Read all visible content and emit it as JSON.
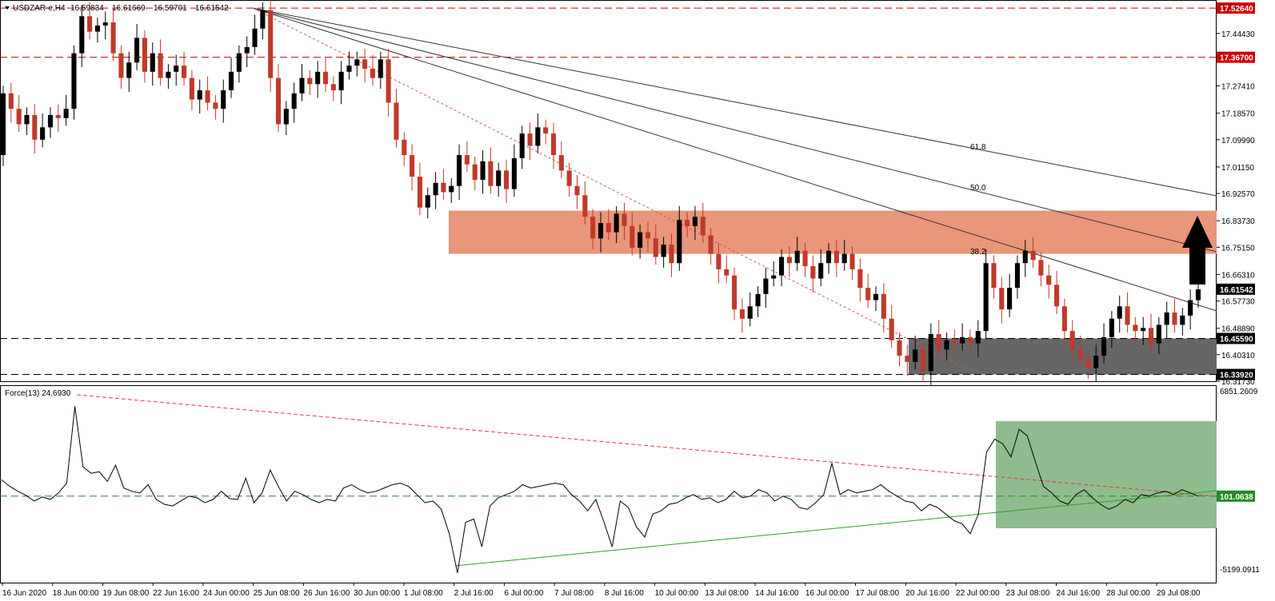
{
  "chart_data": [
    {
      "type": "candlestick",
      "symbol_label": "USDZAR-e,H4",
      "ohlc_header": [
        "16.59834",
        "16.61669",
        "16.59701",
        "16.61542"
      ],
      "ylim": [
        16.3173,
        17.55
      ],
      "y_ticks": [
        "17.44430",
        "17.27410",
        "17.18570",
        "17.09990",
        "17.01150",
        "16.92570",
        "16.83730",
        "16.75150",
        "16.66310",
        "16.57730",
        "16.48890",
        "16.40310",
        "16.31730"
      ],
      "x_labels": [
        "16 Jun 2020",
        "18 Jun 00:00",
        "19 Jun 08:00",
        "22 Jun 16:00",
        "24 Jun 00:00",
        "25 Jun 08:00",
        "26 Jun 16:00",
        "30 Jun 00:00",
        "1 Jul 08:00",
        "2 Jul 16:00",
        "6 Jul 00:00",
        "7 Jul 08:00",
        "8 Jul 16:00",
        "10 Jul 00:00",
        "13 Jul 08:00",
        "14 Jul 16:00",
        "16 Jul 00:00",
        "17 Jul 08:00",
        "20 Jul 16:00",
        "22 Jul 00:00",
        "23 Jul 08:00",
        "24 Jul 16:00",
        "28 Jul 00:00",
        "29 Jul 08:00"
      ],
      "levels": [
        {
          "value": 17.5264,
          "label": "17.52640",
          "color": "#cc0000"
        },
        {
          "value": 17.367,
          "label": "17.36700",
          "color": "#cc0000"
        },
        {
          "value": 16.4559,
          "label": "16.45590",
          "color": "#000000"
        },
        {
          "value": 16.3392,
          "label": "16.33920",
          "color": "#000000"
        }
      ],
      "current_price": {
        "value": 16.61542,
        "label": "16.61542"
      },
      "resistance_zone": {
        "from": 16.73,
        "to": 16.87,
        "color": "#e9967a"
      },
      "support_zone": {
        "from": 16.3392,
        "to": 16.4559,
        "color": "#666666"
      },
      "fib_fan_labels": [
        "38.2",
        "50.0",
        "61.8"
      ],
      "series": [
        {
          "o": 17.05,
          "c": 17.25
        },
        {
          "o": 17.25,
          "c": 17.2
        },
        {
          "o": 17.2,
          "c": 17.15
        },
        {
          "o": 17.15,
          "c": 17.18
        },
        {
          "o": 17.18,
          "c": 17.1
        },
        {
          "o": 17.1,
          "c": 17.14
        },
        {
          "o": 17.14,
          "c": 17.18
        },
        {
          "o": 17.18,
          "c": 17.17
        },
        {
          "o": 17.17,
          "c": 17.2
        },
        {
          "o": 17.2,
          "c": 17.38
        },
        {
          "o": 17.38,
          "c": 17.5
        },
        {
          "o": 17.5,
          "c": 17.45
        },
        {
          "o": 17.45,
          "c": 17.47
        },
        {
          "o": 17.47,
          "c": 17.48
        },
        {
          "o": 17.48,
          "c": 17.38
        },
        {
          "o": 17.38,
          "c": 17.3
        },
        {
          "o": 17.3,
          "c": 17.35
        },
        {
          "o": 17.35,
          "c": 17.43
        },
        {
          "o": 17.43,
          "c": 17.32
        },
        {
          "o": 17.32,
          "c": 17.38
        },
        {
          "o": 17.38,
          "c": 17.3
        },
        {
          "o": 17.3,
          "c": 17.32
        },
        {
          "o": 17.32,
          "c": 17.34
        },
        {
          "o": 17.34,
          "c": 17.3
        },
        {
          "o": 17.3,
          "c": 17.23
        },
        {
          "o": 17.23,
          "c": 17.26
        },
        {
          "o": 17.26,
          "c": 17.22
        },
        {
          "o": 17.22,
          "c": 17.2
        },
        {
          "o": 17.2,
          "c": 17.26
        },
        {
          "o": 17.26,
          "c": 17.32
        },
        {
          "o": 17.32,
          "c": 17.38
        },
        {
          "o": 17.38,
          "c": 17.4
        },
        {
          "o": 17.4,
          "c": 17.46
        },
        {
          "o": 17.46,
          "c": 17.52
        },
        {
          "o": 17.52,
          "c": 17.3
        },
        {
          "o": 17.3,
          "c": 17.15
        },
        {
          "o": 17.15,
          "c": 17.2
        },
        {
          "o": 17.2,
          "c": 17.25
        },
        {
          "o": 17.25,
          "c": 17.3
        },
        {
          "o": 17.3,
          "c": 17.28
        },
        {
          "o": 17.28,
          "c": 17.32
        },
        {
          "o": 17.32,
          "c": 17.28
        },
        {
          "o": 17.28,
          "c": 17.26
        },
        {
          "o": 17.26,
          "c": 17.32
        },
        {
          "o": 17.32,
          "c": 17.34
        },
        {
          "o": 17.34,
          "c": 17.36
        },
        {
          "o": 17.36,
          "c": 17.33
        },
        {
          "o": 17.33,
          "c": 17.3
        },
        {
          "o": 17.3,
          "c": 17.36
        },
        {
          "o": 17.36,
          "c": 17.22
        },
        {
          "o": 17.22,
          "c": 17.1
        },
        {
          "o": 17.1,
          "c": 17.05
        },
        {
          "o": 17.05,
          "c": 16.98
        },
        {
          "o": 16.98,
          "c": 16.88
        },
        {
          "o": 16.88,
          "c": 16.92
        },
        {
          "o": 16.92,
          "c": 16.96
        },
        {
          "o": 16.96,
          "c": 16.93
        },
        {
          "o": 16.93,
          "c": 16.95
        },
        {
          "o": 16.95,
          "c": 17.05
        },
        {
          "o": 17.05,
          "c": 17.02
        },
        {
          "o": 17.02,
          "c": 16.97
        },
        {
          "o": 16.97,
          "c": 17.03
        },
        {
          "o": 17.03,
          "c": 16.95
        },
        {
          "o": 16.95,
          "c": 17.0
        },
        {
          "o": 17.0,
          "c": 16.94
        },
        {
          "o": 16.94,
          "c": 17.04
        },
        {
          "o": 17.04,
          "c": 17.12
        },
        {
          "o": 17.12,
          "c": 17.08
        },
        {
          "o": 17.08,
          "c": 17.14
        },
        {
          "o": 17.14,
          "c": 17.12
        },
        {
          "o": 17.12,
          "c": 17.05
        },
        {
          "o": 17.05,
          "c": 17.0
        },
        {
          "o": 17.0,
          "c": 16.95
        },
        {
          "o": 16.95,
          "c": 16.92
        },
        {
          "o": 16.92,
          "c": 16.85
        },
        {
          "o": 16.85,
          "c": 16.78
        },
        {
          "o": 16.78,
          "c": 16.83
        },
        {
          "o": 16.83,
          "c": 16.8
        },
        {
          "o": 16.8,
          "c": 16.86
        },
        {
          "o": 16.86,
          "c": 16.82
        },
        {
          "o": 16.82,
          "c": 16.75
        },
        {
          "o": 16.75,
          "c": 16.8
        },
        {
          "o": 16.8,
          "c": 16.78
        },
        {
          "o": 16.78,
          "c": 16.72
        },
        {
          "o": 16.72,
          "c": 16.76
        },
        {
          "o": 16.76,
          "c": 16.7
        },
        {
          "o": 16.7,
          "c": 16.84
        },
        {
          "o": 16.84,
          "c": 16.82
        },
        {
          "o": 16.82,
          "c": 16.85
        },
        {
          "o": 16.85,
          "c": 16.79
        },
        {
          "o": 16.79,
          "c": 16.73
        },
        {
          "o": 16.73,
          "c": 16.68
        },
        {
          "o": 16.68,
          "c": 16.66
        },
        {
          "o": 16.66,
          "c": 16.55
        },
        {
          "o": 16.55,
          "c": 16.52
        },
        {
          "o": 16.52,
          "c": 16.56
        },
        {
          "o": 16.56,
          "c": 16.6
        },
        {
          "o": 16.6,
          "c": 16.65
        },
        {
          "o": 16.65,
          "c": 16.66
        },
        {
          "o": 16.66,
          "c": 16.72
        },
        {
          "o": 16.72,
          "c": 16.7
        },
        {
          "o": 16.7,
          "c": 16.74
        },
        {
          "o": 16.74,
          "c": 16.69
        },
        {
          "o": 16.69,
          "c": 16.65
        },
        {
          "o": 16.65,
          "c": 16.7
        },
        {
          "o": 16.7,
          "c": 16.74
        },
        {
          "o": 16.74,
          "c": 16.7
        },
        {
          "o": 16.7,
          "c": 16.73
        },
        {
          "o": 16.73,
          "c": 16.68
        },
        {
          "o": 16.68,
          "c": 16.62
        },
        {
          "o": 16.62,
          "c": 16.58
        },
        {
          "o": 16.58,
          "c": 16.6
        },
        {
          "o": 16.6,
          "c": 16.52
        },
        {
          "o": 16.52,
          "c": 16.45
        },
        {
          "o": 16.45,
          "c": 16.4
        },
        {
          "o": 16.4,
          "c": 16.38
        },
        {
          "o": 16.38,
          "c": 16.42
        },
        {
          "o": 16.42,
          "c": 16.35
        },
        {
          "o": 16.35,
          "c": 16.47
        },
        {
          "o": 16.47,
          "c": 16.42
        },
        {
          "o": 16.42,
          "c": 16.45
        },
        {
          "o": 16.45,
          "c": 16.44
        },
        {
          "o": 16.44,
          "c": 16.46
        },
        {
          "o": 16.46,
          "c": 16.44
        },
        {
          "o": 16.44,
          "c": 16.48
        },
        {
          "o": 16.48,
          "c": 16.7
        },
        {
          "o": 16.7,
          "c": 16.62
        },
        {
          "o": 16.62,
          "c": 16.55
        },
        {
          "o": 16.55,
          "c": 16.62
        },
        {
          "o": 16.62,
          "c": 16.7
        },
        {
          "o": 16.7,
          "c": 16.74
        },
        {
          "o": 16.74,
          "c": 16.71
        },
        {
          "o": 16.71,
          "c": 16.66
        },
        {
          "o": 16.66,
          "c": 16.63
        },
        {
          "o": 16.63,
          "c": 16.56
        },
        {
          "o": 16.56,
          "c": 16.48
        },
        {
          "o": 16.48,
          "c": 16.42
        },
        {
          "o": 16.42,
          "c": 16.39
        },
        {
          "o": 16.39,
          "c": 16.36
        },
        {
          "o": 16.36,
          "c": 16.4
        },
        {
          "o": 16.4,
          "c": 16.46
        },
        {
          "o": 16.46,
          "c": 16.52
        },
        {
          "o": 16.52,
          "c": 16.56
        },
        {
          "o": 16.56,
          "c": 16.5
        },
        {
          "o": 16.5,
          "c": 16.48
        },
        {
          "o": 16.48,
          "c": 16.49
        },
        {
          "o": 16.49,
          "c": 16.44
        },
        {
          "o": 16.44,
          "c": 16.5
        },
        {
          "o": 16.5,
          "c": 16.54
        },
        {
          "o": 16.54,
          "c": 16.5
        },
        {
          "o": 16.5,
          "c": 16.53
        },
        {
          "o": 16.53,
          "c": 16.58
        },
        {
          "o": 16.58,
          "c": 16.615
        }
      ]
    },
    {
      "type": "line",
      "indicator_label": "Force(13) 24.6930",
      "ylim": [
        -5199.0911,
        6851.2609
      ],
      "y_ticks": [
        "6851.2609",
        "-5199.0911"
      ],
      "zero_level": {
        "value": 101.0638,
        "label": "101.0638"
      },
      "highlight_zone": {
        "color": "#8fbc8f"
      },
      "values": [
        1100,
        700,
        400,
        150,
        -200,
        50,
        -100,
        300,
        900,
        5600,
        1900,
        1500,
        1600,
        1000,
        2000,
        600,
        400,
        300,
        800,
        -100,
        -400,
        -500,
        -200,
        100,
        0,
        -300,
        -100,
        400,
        -50,
        -100,
        1200,
        -300,
        300,
        1700,
        700,
        -200,
        400,
        200,
        -100,
        -300,
        -100,
        -200,
        600,
        800,
        500,
        300,
        400,
        600,
        800,
        900,
        700,
        200,
        -300,
        -200,
        -700,
        -2200,
        -4600,
        -1500,
        -1300,
        -3000,
        -500,
        0,
        200,
        400,
        800,
        600,
        700,
        800,
        900,
        800,
        200,
        -200,
        -800,
        -100,
        -1500,
        -3000,
        -200,
        -600,
        -1800,
        -2400,
        -1000,
        -800,
        -400,
        -300,
        0,
        200,
        -100,
        0,
        -300,
        -100,
        400,
        0,
        100,
        500,
        300,
        -200,
        100,
        -100,
        -600,
        -700,
        -300,
        200,
        2100,
        200,
        500,
        300,
        400,
        500,
        800,
        400,
        100,
        -200,
        -300,
        -800,
        -400,
        -600,
        -1000,
        -1400,
        -1600,
        -2200,
        -1000,
        2800,
        3600,
        3300,
        2500,
        4200,
        3800,
        2200,
        700,
        300,
        -200,
        -400,
        200,
        500,
        0,
        -400,
        -700,
        -500,
        -100,
        -300,
        200,
        100,
        300,
        400,
        200,
        500,
        300,
        100
      ]
    }
  ]
}
